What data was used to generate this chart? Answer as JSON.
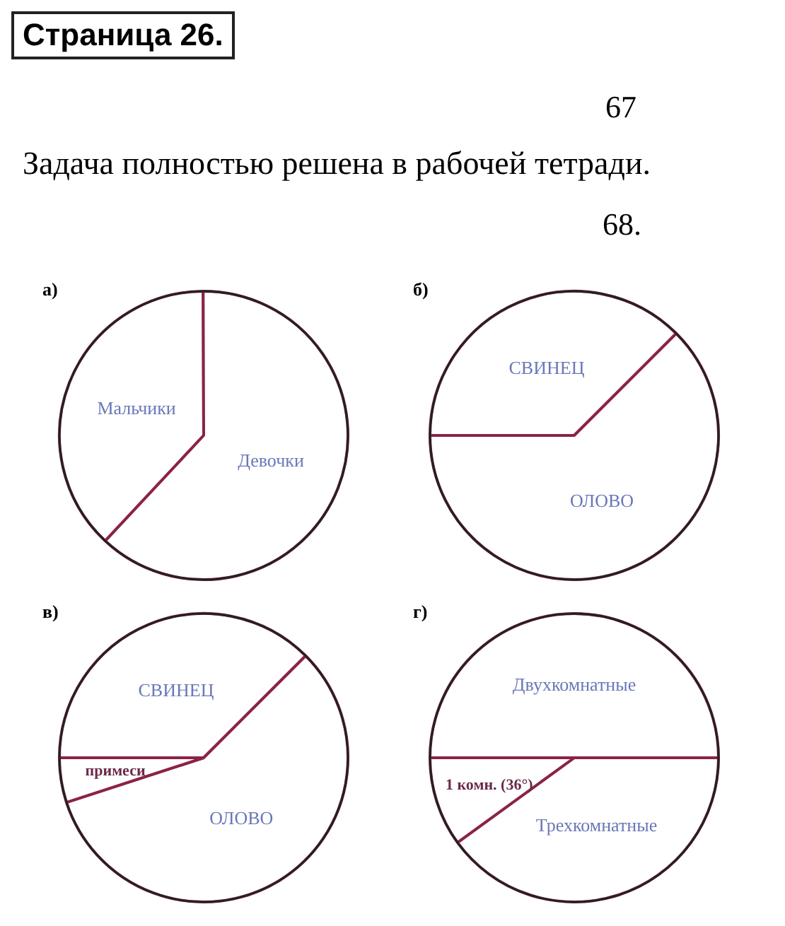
{
  "chart_data": [
    {
      "type": "other",
      "title": "Страница 26.",
      "annotations": [
        "67",
        "Задача полностью решена в рабочей тетради.",
        "68."
      ]
    },
    {
      "type": "pie",
      "title": "а)",
      "categories": [
        "Мальчики",
        "Девочки"
      ],
      "values": [
        38,
        62
      ],
      "colors": [
        "#ffffff",
        "#ffffff"
      ]
    },
    {
      "type": "pie",
      "title": "б)",
      "categories": [
        "СВИНЕЦ",
        "ОЛОВО"
      ],
      "values": [
        37.5,
        62.5
      ],
      "colors": [
        "#ffffff",
        "#ffffff"
      ]
    },
    {
      "type": "pie",
      "title": "в)",
      "categories": [
        "СВИНЕЦ",
        "ОЛОВО",
        "примеси"
      ],
      "values": [
        37.5,
        57.5,
        5
      ],
      "colors": [
        "#ffffff",
        "#ffffff",
        "#ffffff"
      ]
    },
    {
      "type": "pie",
      "title": "г)",
      "categories": [
        "Двухкомнатные",
        "Трехкомнатные",
        "1 комн. (36°)"
      ],
      "values": [
        50,
        40,
        10
      ],
      "colors": [
        "#ffffff",
        "#ffffff",
        "#ffffff"
      ]
    }
  ]
}
